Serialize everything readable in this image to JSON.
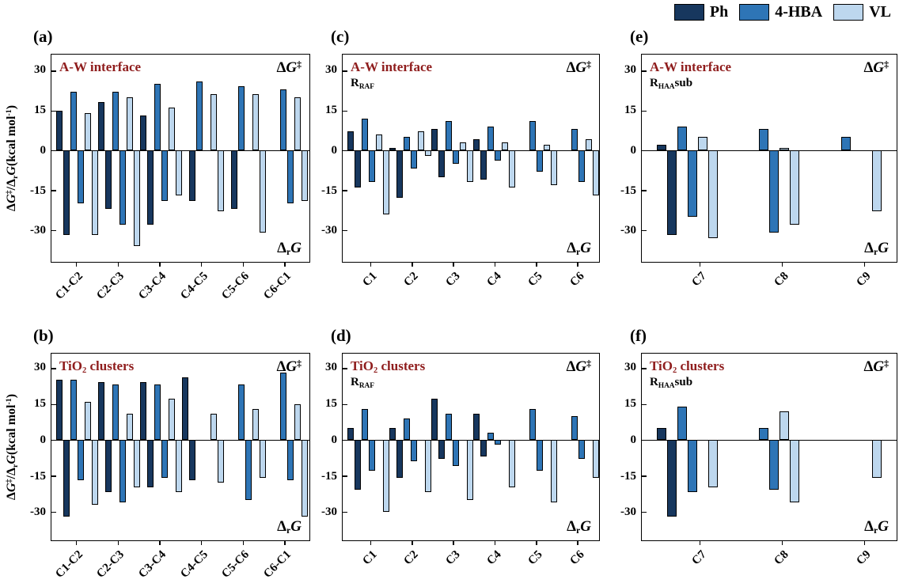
{
  "colors": {
    "title": "#8f1d1d",
    "series": {
      "Ph": "#17375E",
      "4-HBA": "#2E75B6",
      "VL": "#BDD7EE"
    }
  },
  "legend": {
    "items": [
      {
        "label": "Ph",
        "color": "#17375E"
      },
      {
        "label": "4-HBA",
        "color": "#2E75B6"
      },
      {
        "label": "VL",
        "color": "#BDD7EE"
      }
    ]
  },
  "axis": {
    "ylim": [
      -42,
      36
    ],
    "yticks": [
      30,
      15,
      0,
      -15,
      -30
    ],
    "ylabel_text": "ΔG‡/ΔrG(kcal mol-1)",
    "ylabel_parts": [
      {
        "t": "Δ"
      },
      {
        "t": "G",
        "i": 1
      },
      {
        "t": "‡",
        "sup": 1
      },
      {
        "t": "/Δ"
      },
      {
        "t": "r",
        "sub": 1
      },
      {
        "t": "G",
        "i": 1
      },
      {
        "t": "(kcal mol"
      },
      {
        "t": "-1",
        "sup": 1
      },
      {
        "t": ")"
      }
    ],
    "dg_parts": [
      {
        "t": "Δ"
      },
      {
        "t": "G",
        "i": 1
      },
      {
        "t": "‡",
        "sup": 1
      }
    ],
    "drg_parts": [
      {
        "t": "Δ"
      },
      {
        "t": "r",
        "sub": 1
      },
      {
        "t": "G",
        "i": 1
      }
    ]
  },
  "chart_data": [
    {
      "id": "a",
      "type": "bar",
      "letter": "(a)",
      "title": "A-W interface",
      "title_parts": [
        {
          "t": "A-W interface"
        }
      ],
      "subtitle_parts": null,
      "categories": [
        "C1-C2",
        "C2-C3",
        "C3-C4",
        "C4-C5",
        "C5-C6",
        "C6-C1"
      ],
      "series": [
        {
          "name": "Ph",
          "pairs": [
            [
              15,
              -32
            ],
            [
              18,
              -22
            ],
            [
              13,
              -28
            ],
            [
              null,
              -19
            ],
            [
              null,
              -22
            ],
            [
              null,
              null
            ]
          ]
        },
        {
          "name": "4-HBA",
          "pairs": [
            [
              22,
              -20
            ],
            [
              22,
              -28
            ],
            [
              25,
              -19
            ],
            [
              26,
              null
            ],
            [
              24,
              null
            ],
            [
              23,
              -20
            ]
          ]
        },
        {
          "name": "VL",
          "pairs": [
            [
              14,
              -32
            ],
            [
              20,
              -36
            ],
            [
              16,
              -17
            ],
            [
              21,
              -23
            ],
            [
              21,
              -31
            ],
            [
              20,
              -19
            ]
          ]
        }
      ]
    },
    {
      "id": "c",
      "type": "bar",
      "letter": "(c)",
      "title": "A-W interface",
      "title_parts": [
        {
          "t": "A-W interface"
        }
      ],
      "subtitle_parts": [
        {
          "t": "R"
        },
        {
          "t": "RAF",
          "sub": 1
        }
      ],
      "categories": [
        "C1",
        "C2",
        "C3",
        "C4",
        "C5",
        "C6"
      ],
      "series": [
        {
          "name": "Ph",
          "pairs": [
            [
              7,
              -14
            ],
            [
              1,
              -18
            ],
            [
              8,
              -10
            ],
            [
              4,
              -11
            ],
            [
              null,
              null
            ],
            [
              null,
              null
            ]
          ]
        },
        {
          "name": "4-HBA",
          "pairs": [
            [
              12,
              -12
            ],
            [
              5,
              -7
            ],
            [
              11,
              -5
            ],
            [
              9,
              -4
            ],
            [
              11,
              -8
            ],
            [
              8,
              -12
            ]
          ]
        },
        {
          "name": "VL",
          "pairs": [
            [
              6,
              -24
            ],
            [
              7,
              -2
            ],
            [
              3,
              -12
            ],
            [
              3,
              -14
            ],
            [
              2,
              -13
            ],
            [
              4,
              -17
            ]
          ]
        }
      ]
    },
    {
      "id": "e",
      "type": "bar",
      "letter": "(e)",
      "title": "A-W interface",
      "title_parts": [
        {
          "t": "A-W interface"
        }
      ],
      "subtitle_parts": [
        {
          "t": "R"
        },
        {
          "t": "HAA",
          "sub": 1
        },
        {
          "t": "sub"
        }
      ],
      "categories": [
        "C7",
        "C8",
        "C9"
      ],
      "series": [
        {
          "name": "Ph",
          "pairs": [
            [
              2,
              -32
            ],
            [
              null,
              null
            ],
            [
              null,
              null
            ]
          ]
        },
        {
          "name": "4-HBA",
          "pairs": [
            [
              9,
              -25
            ],
            [
              8,
              -31
            ],
            [
              5,
              null
            ]
          ]
        },
        {
          "name": "VL",
          "pairs": [
            [
              5,
              -33
            ],
            [
              1,
              -28
            ],
            [
              null,
              -23
            ]
          ]
        }
      ]
    },
    {
      "id": "b",
      "type": "bar",
      "letter": "(b)",
      "title": "TiO2 clusters",
      "title_parts": [
        {
          "t": "TiO"
        },
        {
          "t": "2",
          "sub": 1
        },
        {
          "t": " clusters"
        }
      ],
      "subtitle_parts": null,
      "categories": [
        "C1-C2",
        "C2-C3",
        "C3-C4",
        "C4-C5",
        "C5-C6",
        "C6-C1"
      ],
      "series": [
        {
          "name": "Ph",
          "pairs": [
            [
              25,
              -32
            ],
            [
              24,
              -22
            ],
            [
              24,
              -20
            ],
            [
              26,
              -17
            ],
            [
              null,
              null
            ],
            [
              null,
              null
            ]
          ]
        },
        {
          "name": "4-HBA",
          "pairs": [
            [
              25,
              -17
            ],
            [
              23,
              -26
            ],
            [
              23,
              -16
            ],
            [
              null,
              null
            ],
            [
              23,
              -25
            ],
            [
              28,
              -17
            ]
          ]
        },
        {
          "name": "VL",
          "pairs": [
            [
              16,
              -27
            ],
            [
              11,
              -20
            ],
            [
              17,
              -22
            ],
            [
              11,
              -18
            ],
            [
              13,
              -16
            ],
            [
              15,
              -32
            ]
          ]
        }
      ]
    },
    {
      "id": "d",
      "type": "bar",
      "letter": "(d)",
      "title": "TiO2 clusters",
      "title_parts": [
        {
          "t": "TiO"
        },
        {
          "t": "2",
          "sub": 1
        },
        {
          "t": " clusters"
        }
      ],
      "subtitle_parts": [
        {
          "t": "R"
        },
        {
          "t": "RAF",
          "sub": 1
        }
      ],
      "categories": [
        "C1",
        "C2",
        "C3",
        "C4",
        "C5",
        "C6"
      ],
      "series": [
        {
          "name": "Ph",
          "pairs": [
            [
              5,
              -21
            ],
            [
              5,
              -16
            ],
            [
              17,
              -8
            ],
            [
              11,
              -7
            ],
            [
              null,
              null
            ],
            [
              null,
              null
            ]
          ]
        },
        {
          "name": "4-HBA",
          "pairs": [
            [
              13,
              -13
            ],
            [
              9,
              -9
            ],
            [
              11,
              -11
            ],
            [
              3,
              -2
            ],
            [
              13,
              -13
            ],
            [
              10,
              -8
            ]
          ]
        },
        {
          "name": "VL",
          "pairs": [
            [
              null,
              -30
            ],
            [
              null,
              -22
            ],
            [
              null,
              -25
            ],
            [
              null,
              -20
            ],
            [
              null,
              -26
            ],
            [
              null,
              -16
            ]
          ]
        }
      ]
    },
    {
      "id": "f",
      "type": "bar",
      "letter": "(f)",
      "title": "TiO2 clusters",
      "title_parts": [
        {
          "t": "TiO"
        },
        {
          "t": "2",
          "sub": 1
        },
        {
          "t": " clusters"
        }
      ],
      "subtitle_parts": [
        {
          "t": "R"
        },
        {
          "t": "HAA",
          "sub": 1
        },
        {
          "t": "sub"
        }
      ],
      "categories": [
        "C7",
        "C8",
        "C9"
      ],
      "series": [
        {
          "name": "Ph",
          "pairs": [
            [
              5,
              -32
            ],
            [
              null,
              null
            ],
            [
              null,
              null
            ]
          ]
        },
        {
          "name": "4-HBA",
          "pairs": [
            [
              14,
              -22
            ],
            [
              5,
              -21
            ],
            [
              null,
              null
            ]
          ]
        },
        {
          "name": "VL",
          "pairs": [
            [
              null,
              -20
            ],
            [
              12,
              -26
            ],
            [
              null,
              -16
            ]
          ]
        }
      ]
    }
  ]
}
